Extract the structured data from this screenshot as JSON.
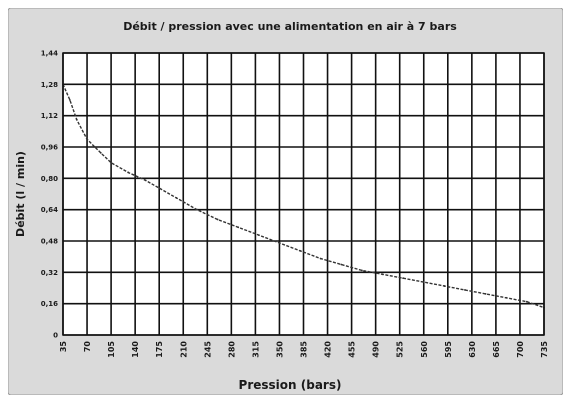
{
  "chart_data": {
    "type": "line",
    "title": "Débit / pression avec une alimentation en air à 7 bars",
    "xlabel": "Pression (bars)",
    "ylabel": "Débit (l / min)",
    "x_ticks": [
      "35",
      "70",
      "105",
      "140",
      "175",
      "210",
      "245",
      "280",
      "315",
      "350",
      "385",
      "420",
      "455",
      "490",
      "525",
      "560",
      "595",
      "630",
      "665",
      "700",
      "735"
    ],
    "y_ticks": [
      "0",
      "0,16",
      "0,32",
      "0,48",
      "0,64",
      "0,80",
      "0,96",
      "1,12",
      "1,28",
      "1,44"
    ],
    "xlim": [
      35,
      735
    ],
    "ylim": [
      0,
      1.44
    ],
    "grid": true,
    "series": [
      {
        "color": "#333333",
        "x": [
          35,
          45,
          55,
          70,
          90,
          105,
          130,
          155,
          175,
          200,
          230,
          260,
          290,
          320,
          350,
          380,
          410,
          440,
          470,
          500,
          530,
          560,
          590,
          620,
          650,
          680,
          710,
          735
        ],
        "y": [
          1.28,
          1.2,
          1.1,
          1.0,
          0.93,
          0.88,
          0.83,
          0.79,
          0.75,
          0.7,
          0.64,
          0.59,
          0.55,
          0.51,
          0.47,
          0.43,
          0.39,
          0.36,
          0.33,
          0.31,
          0.29,
          0.27,
          0.25,
          0.23,
          0.21,
          0.19,
          0.17,
          0.14
        ]
      }
    ]
  },
  "colors": {
    "frame_background": "#dadada",
    "plot_background": "#ffffff",
    "grid": "#111111",
    "line": "#333333"
  }
}
